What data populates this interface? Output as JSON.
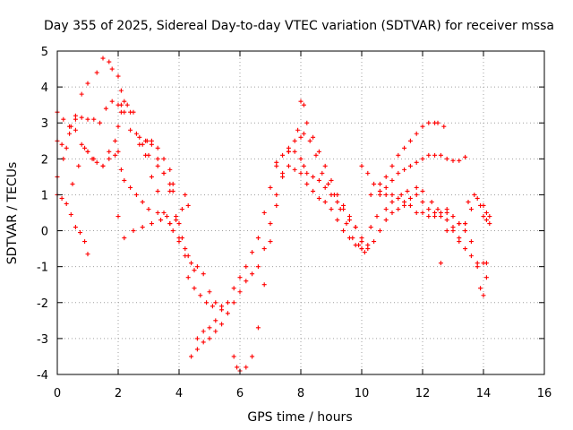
{
  "chart_data": {
    "type": "scatter",
    "title": "Day 355 of 2025, Sidereal Day-to-day VTEC variation (SDTVAR) for receiver mssa",
    "xlabel": "GPS time / hours",
    "ylabel": "SDTVAR / TECUs",
    "xlim": [
      0,
      16
    ],
    "ylim": [
      -4,
      5
    ],
    "xticks": [
      "0",
      "2",
      "4",
      "6",
      "8",
      "10",
      "12",
      "14",
      "16"
    ],
    "yticks": [
      "-4",
      "-3",
      "-2",
      "-1",
      "0",
      "1",
      "2",
      "3",
      "4",
      "5"
    ],
    "grid": true,
    "marker": "+",
    "color": "#ff0000",
    "series": [
      {
        "x": [
          0.0,
          0.15,
          0.3,
          0.45,
          0.6,
          0.75,
          0.9,
          1.0
        ],
        "y": [
          1.0,
          0.9,
          0.75,
          0.45,
          0.1,
          -0.05,
          -0.3,
          -0.65
        ]
      },
      {
        "x": [
          0.0,
          0.15,
          0.3,
          0.45,
          0.6,
          0.8,
          1.0,
          1.2,
          1.5,
          1.7,
          1.9,
          2.0,
          2.1,
          2.2,
          2.4,
          2.6,
          2.8,
          2.95,
          3.1,
          3.3,
          3.5,
          3.7,
          3.9,
          4.1,
          4.3,
          4.5
        ],
        "y": [
          2.5,
          2.4,
          2.3,
          2.9,
          2.8,
          2.4,
          2.2,
          2.0,
          1.8,
          2.2,
          2.5,
          2.9,
          3.3,
          3.6,
          3.3,
          2.7,
          2.4,
          2.5,
          2.4,
          2.0,
          1.6,
          1.1,
          0.4,
          -0.2,
          -0.7,
          -1.1
        ]
      },
      {
        "x": [
          0.0,
          0.2,
          0.4,
          0.6,
          0.8,
          1.0,
          1.3,
          1.5,
          1.7,
          1.8,
          2.0,
          2.1,
          2.2,
          2.4,
          2.7,
          3.0,
          3.3,
          3.5,
          3.7,
          3.8
        ],
        "y": [
          1.5,
          2.0,
          2.7,
          3.2,
          3.8,
          4.1,
          4.4,
          4.8,
          4.7,
          4.5,
          4.3,
          3.9,
          3.3,
          2.8,
          2.4,
          2.1,
          1.8,
          1.6,
          1.3,
          1.1
        ]
      },
      {
        "x": [
          0.0,
          0.2,
          0.4,
          0.6,
          0.8,
          1.0,
          1.2,
          1.4,
          1.6,
          1.8,
          2.0,
          2.1,
          2.3,
          2.5,
          2.7,
          2.9,
          3.1,
          3.3,
          3.5,
          3.7,
          3.8,
          4.0,
          4.2,
          4.3,
          4.5,
          4.7,
          4.9,
          5.1
        ],
        "y": [
          3.3,
          3.1,
          2.9,
          3.1,
          3.15,
          3.1,
          3.1,
          3.0,
          3.4,
          3.6,
          3.5,
          3.5,
          3.5,
          3.3,
          2.6,
          2.1,
          1.5,
          1.1,
          0.5,
          0.2,
          0.0,
          -0.2,
          -0.5,
          -1.3,
          -1.6,
          -1.8,
          -2.0,
          -2.1
        ]
      },
      {
        "x": [
          0.5,
          0.7,
          0.9,
          1.0,
          1.15,
          1.3,
          1.5,
          1.7,
          1.9,
          2.0,
          2.1,
          2.2,
          2.4,
          2.6,
          2.8,
          3.0,
          3.3,
          3.6,
          3.9,
          4.0,
          4.1,
          4.2,
          4.3
        ],
        "y": [
          1.3,
          1.8,
          2.3,
          2.2,
          2.0,
          1.9,
          1.8,
          2.0,
          2.1,
          2.2,
          1.7,
          1.4,
          1.2,
          1.0,
          0.8,
          0.6,
          0.5,
          0.4,
          0.3,
          0.2,
          0.6,
          1.0,
          0.7
        ]
      },
      {
        "x": [
          2.0,
          2.2,
          2.5,
          2.8,
          3.1,
          3.4,
          3.7,
          4.0,
          4.2,
          4.4,
          4.6,
          4.8,
          5.0,
          5.2,
          5.4
        ],
        "y": [
          0.4,
          -0.2,
          0.0,
          0.1,
          0.2,
          0.3,
          0.2,
          -0.3,
          -0.7,
          -0.9,
          -1.0,
          -1.2,
          -1.7,
          -2.0,
          -2.1
        ]
      },
      {
        "x": [
          4.4,
          4.6,
          4.8,
          5.0,
          5.2,
          5.4,
          5.6,
          5.8,
          6.0,
          6.2,
          6.4,
          6.6,
          6.8,
          7.0,
          7.2,
          7.4,
          7.6,
          7.8,
          8.0,
          8.2,
          8.4,
          8.6,
          8.8,
          9.0,
          9.2,
          9.4,
          9.6,
          9.8,
          10.0,
          10.1
        ],
        "y": [
          -3.5,
          -3.3,
          -3.1,
          -3.0,
          -2.8,
          -2.6,
          -2.3,
          -2.0,
          -1.7,
          -1.4,
          -1.2,
          -1.0,
          -0.5,
          0.2,
          1.0,
          1.5,
          1.8,
          1.7,
          1.6,
          1.3,
          1.1,
          0.9,
          0.8,
          0.6,
          0.3,
          0.0,
          -0.2,
          -0.4,
          -0.5,
          -0.6
        ]
      },
      {
        "x": [
          5.8,
          5.9,
          6.0,
          6.2,
          6.4,
          6.6,
          6.8,
          7.0,
          7.2,
          7.4,
          7.6,
          7.8,
          8.0,
          8.1,
          8.3,
          8.5,
          8.7,
          8.9,
          9.1,
          9.3,
          9.5,
          9.7,
          9.9,
          10.0
        ],
        "y": [
          -3.5,
          -3.8,
          -3.9,
          -3.8,
          -3.5,
          -2.7,
          -1.5,
          -0.3,
          0.7,
          1.6,
          2.2,
          2.5,
          2.6,
          2.7,
          2.5,
          2.1,
          1.6,
          1.3,
          1.0,
          0.6,
          0.2,
          -0.2,
          -0.4,
          -0.5
        ]
      },
      {
        "x": [
          4.6,
          4.8,
          5.0,
          5.2,
          5.4,
          5.6,
          5.8,
          6.0,
          6.2,
          6.4,
          6.6,
          6.8,
          7.0,
          7.2,
          7.4,
          7.6,
          7.8,
          8.0,
          8.1,
          8.2,
          8.4,
          8.6,
          8.8,
          9.0,
          9.2,
          9.4,
          9.6,
          9.8,
          10.0,
          10.2
        ],
        "y": [
          -3.0,
          -2.8,
          -2.7,
          -2.5,
          -2.2,
          -2.0,
          -1.6,
          -1.3,
          -1.0,
          -0.6,
          -0.2,
          0.5,
          1.2,
          1.8,
          2.1,
          2.3,
          2.2,
          2.0,
          1.8,
          1.6,
          1.5,
          1.4,
          1.2,
          1.0,
          0.8,
          0.6,
          0.3,
          0.1,
          -0.3,
          -0.5
        ]
      },
      {
        "x": [
          7.2,
          7.6,
          7.9,
          8.0,
          8.1,
          8.2,
          8.4,
          8.6,
          8.8,
          9.0,
          9.2,
          9.4,
          9.6,
          9.8,
          10.0,
          10.2,
          10.4,
          10.6,
          10.8,
          11.0,
          11.2,
          11.4,
          11.6,
          11.8,
          12.0,
          12.2,
          12.4,
          12.6,
          12.8,
          13.0,
          13.2,
          13.4,
          13.6,
          13.8,
          14.0,
          14.1
        ],
        "y": [
          1.9,
          2.2,
          2.8,
          3.6,
          3.5,
          3.0,
          2.6,
          2.2,
          1.8,
          1.4,
          1.0,
          0.7,
          0.4,
          0.1,
          -0.2,
          -0.4,
          -0.3,
          0.0,
          0.3,
          0.5,
          0.6,
          0.7,
          0.9,
          1.0,
          0.8,
          0.6,
          0.5,
          0.4,
          0.3,
          0.0,
          -0.3,
          -0.5,
          -0.7,
          -0.9,
          -0.9,
          -0.9
        ]
      },
      {
        "x": [
          10.0,
          10.3,
          10.5,
          10.8,
          11.0,
          11.3,
          11.5,
          11.8,
          12.0,
          12.3,
          12.5,
          12.8,
          13.0,
          13.2,
          13.4,
          13.6,
          13.8,
          14.0,
          14.1,
          14.2
        ],
        "y": [
          -0.3,
          0.1,
          0.4,
          0.6,
          0.8,
          1.0,
          1.1,
          1.2,
          1.1,
          0.8,
          0.6,
          0.6,
          0.4,
          0.2,
          0.2,
          0.6,
          0.9,
          0.7,
          0.5,
          0.4
        ]
      },
      {
        "x": [
          10.0,
          10.2,
          10.4,
          10.6,
          10.8,
          11.0,
          11.2,
          11.4,
          11.6,
          11.8,
          12.0,
          12.2,
          12.4,
          12.6,
          12.8,
          13.0,
          13.2,
          13.4,
          13.5,
          13.7,
          13.9,
          14.0,
          14.1,
          14.2
        ],
        "y": [
          1.8,
          1.6,
          1.3,
          1.1,
          1.0,
          1.0,
          0.9,
          0.8,
          0.7,
          0.5,
          0.5,
          0.4,
          0.4,
          0.5,
          0.5,
          0.1,
          -0.2,
          0.2,
          0.8,
          1.0,
          0.7,
          0.4,
          0.3,
          0.2
        ]
      },
      {
        "x": [
          10.3,
          10.6,
          10.8,
          11.0,
          11.2,
          11.4,
          11.6,
          11.8,
          12.0,
          12.2,
          12.4,
          12.5,
          12.7
        ],
        "y": [
          1.0,
          1.3,
          1.5,
          1.8,
          2.1,
          2.3,
          2.5,
          2.7,
          2.9,
          3.0,
          3.0,
          3.0,
          2.9
        ]
      },
      {
        "x": [
          10.6,
          10.8,
          11.0,
          11.2,
          11.4,
          11.6,
          11.8,
          12.0,
          12.2,
          12.4,
          12.6,
          12.8,
          13.0,
          13.2,
          13.4
        ],
        "y": [
          1.0,
          1.2,
          1.4,
          1.6,
          1.7,
          1.8,
          1.9,
          2.0,
          2.1,
          2.1,
          2.1,
          2.0,
          1.95,
          1.95,
          2.05
        ]
      },
      {
        "x": [
          12.6,
          12.8,
          13.0,
          13.2,
          13.4,
          13.6,
          13.8,
          13.9,
          14.0,
          14.1
        ],
        "y": [
          -0.9,
          0.0,
          0.4,
          0.2,
          0.0,
          -0.3,
          -1.0,
          -1.6,
          -1.8,
          -1.3
        ]
      },
      {
        "x": [
          2.9,
          3.1,
          3.3,
          3.5,
          3.7,
          3.8
        ],
        "y": [
          2.5,
          2.5,
          2.3,
          2.0,
          1.7,
          1.3
        ]
      }
    ]
  }
}
